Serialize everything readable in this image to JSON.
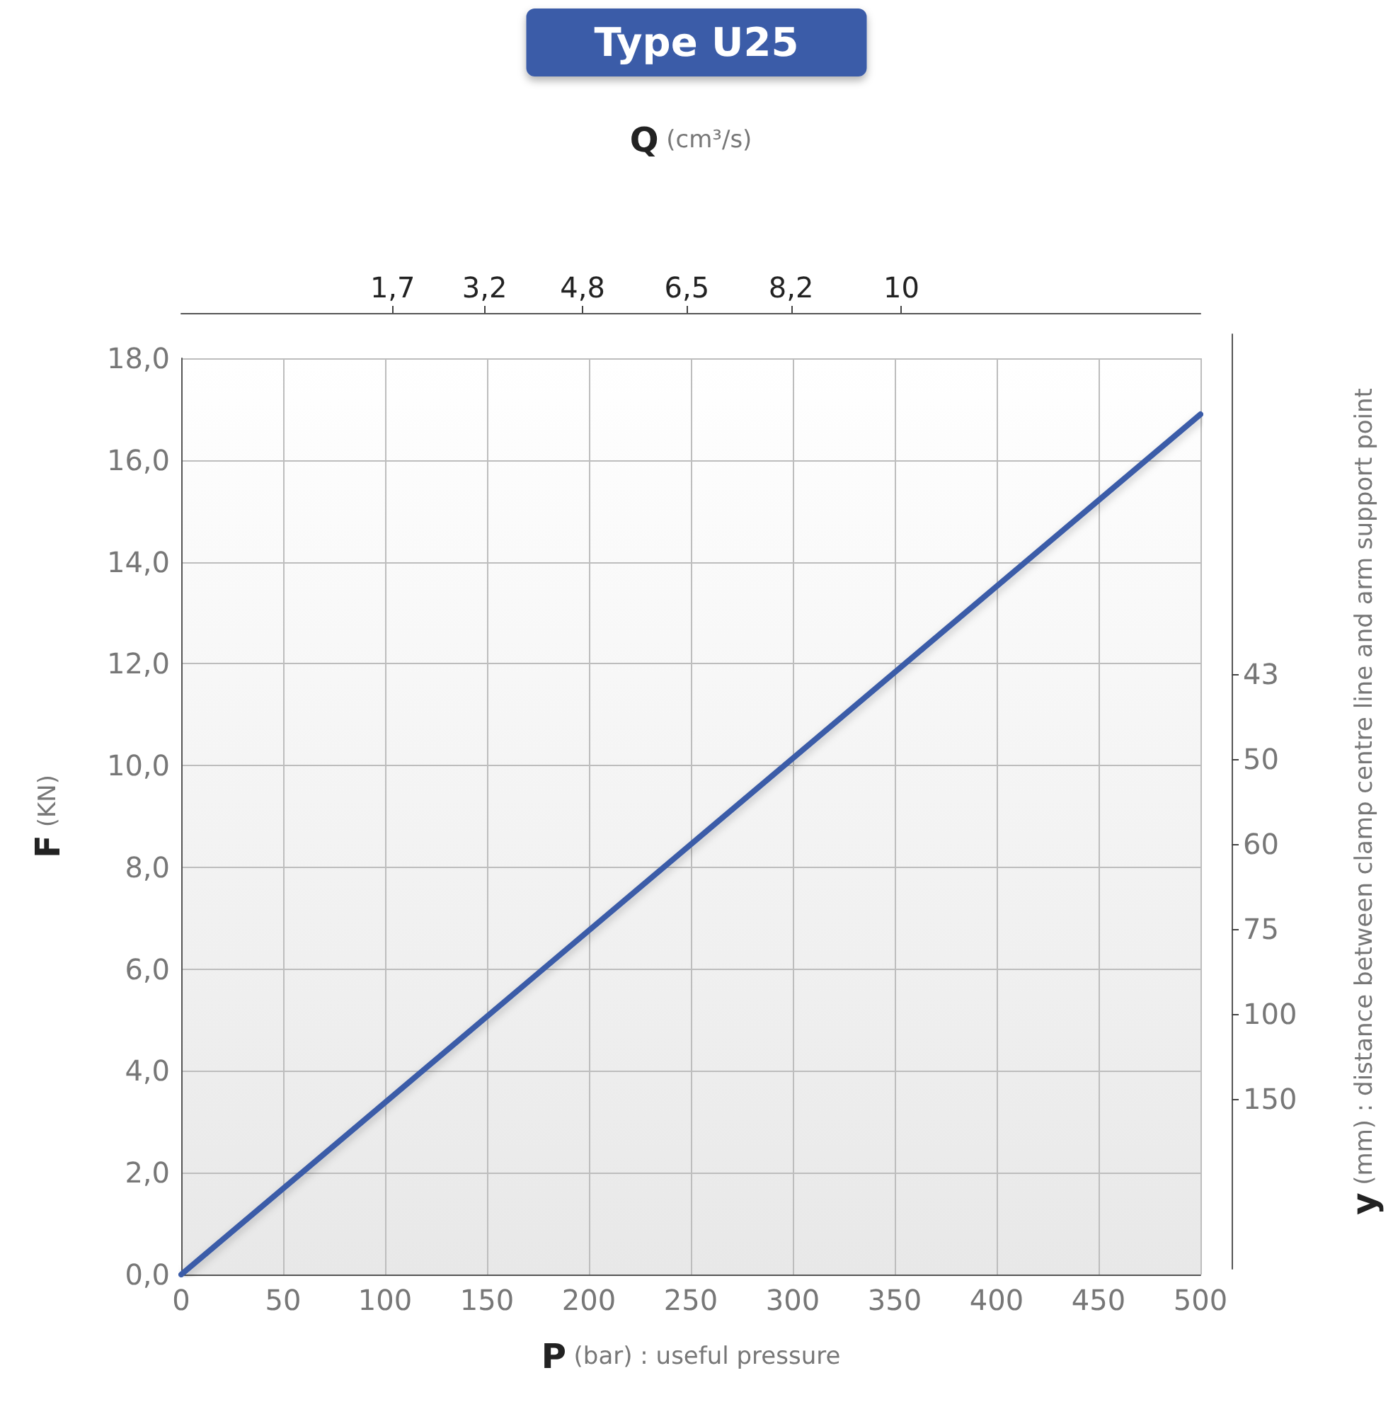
{
  "chart_data": {
    "type": "line",
    "title": "Type U25",
    "xlabel": "P (bar) : useful pressure",
    "ylabel": "F (KN)",
    "x2label": "Q (cm³/s)",
    "y2label": "y (mm) : distance between clamp centre line and arm support point",
    "x": [
      0,
      500
    ],
    "series": [
      {
        "color": "#3a5ba8",
        "values": [
          0,
          16.9
        ]
      }
    ],
    "xlim": [
      0,
      500
    ],
    "xticks": [
      0,
      50,
      100,
      150,
      200,
      250,
      300,
      350,
      400,
      450,
      500
    ],
    "ylim": [
      0,
      18
    ],
    "yticks": [
      {
        "value": 0,
        "label": "0,0"
      },
      {
        "value": 2,
        "label": "2,0"
      },
      {
        "value": 4,
        "label": "4,0"
      },
      {
        "value": 6,
        "label": "6,0"
      },
      {
        "value": 8,
        "label": "8,0"
      },
      {
        "value": 10,
        "label": "10,0"
      },
      {
        "value": 12,
        "label": "12,0"
      },
      {
        "value": 14,
        "label": "14,0"
      },
      {
        "value": 16,
        "label": "16,0"
      },
      {
        "value": 18,
        "label": "18,0"
      }
    ],
    "x2lim": [
      -1.75,
      14.88
    ],
    "x2ticks": [
      {
        "value": 1.7,
        "label": "1,7"
      },
      {
        "value": 3.2,
        "label": "3,2"
      },
      {
        "value": 4.8,
        "label": "4,8"
      },
      {
        "value": 6.5,
        "label": "6,5"
      },
      {
        "value": 8.2,
        "label": "8,2"
      },
      10
    ],
    "y2_categories": [
      null,
      null,
      null,
      null,
      "43",
      "50",
      "60",
      "75",
      "100",
      "150",
      null,
      null
    ],
    "grid": true,
    "marker": "none",
    "line_style": "solid"
  }
}
